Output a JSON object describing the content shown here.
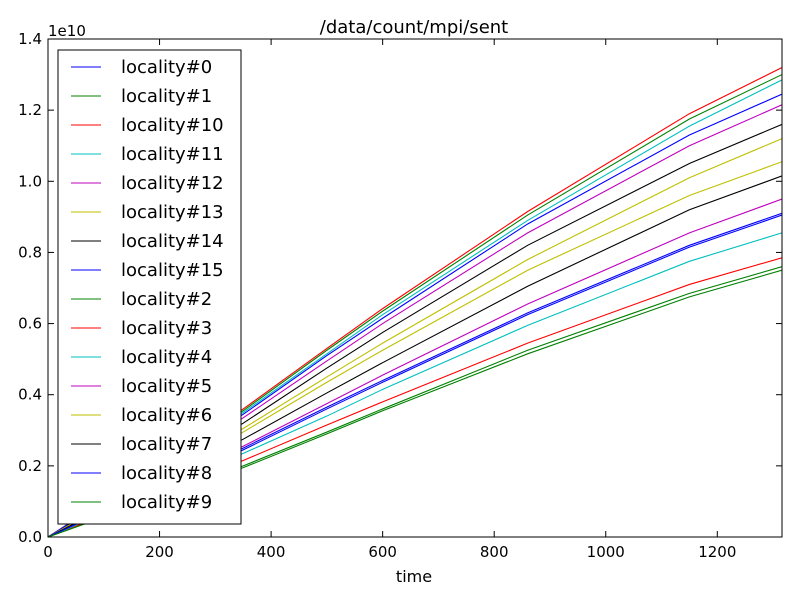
{
  "chart_data": {
    "type": "line",
    "title": "/data/count/mpi/sent",
    "xlabel": "time",
    "ylabel": "",
    "y_offset_label": "1e10",
    "xlim": [
      0,
      1316
    ],
    "ylim": [
      0,
      14000000000.0
    ],
    "x_ticks": [
      0,
      200,
      400,
      600,
      800,
      1000,
      1200
    ],
    "y_ticks": [
      0,
      2000000000.0,
      4000000000.0,
      6000000000.0,
      8000000000.0,
      10000000000.0,
      12000000000.0,
      14000000000.0
    ],
    "y_tick_labels": [
      "0.0",
      "0.2",
      "0.4",
      "0.6",
      "0.8",
      "1.0",
      "1.2",
      "1.4"
    ],
    "grid": false,
    "legend_position": "upper-left",
    "x": [
      0,
      350,
      500,
      600,
      860,
      1150,
      1316
    ],
    "series": [
      {
        "name": "locality#0",
        "color": "#0000ff",
        "values": [
          0,
          2450000000.0,
          3600000000.0,
          4350000000.0,
          6250000000.0,
          8150000000.0,
          9050000000.0
        ]
      },
      {
        "name": "locality#1",
        "color": "#008000",
        "values": [
          0,
          3550000000.0,
          5250000000.0,
          6350000000.0,
          9050000000.0,
          11750000000.0,
          13000000000.0
        ]
      },
      {
        "name": "locality#10",
        "color": "#ff0000",
        "values": [
          0,
          3600000000.0,
          5300000000.0,
          6420000000.0,
          9150000000.0,
          11900000000.0,
          13200000000.0
        ]
      },
      {
        "name": "locality#11",
        "color": "#00bfbf",
        "values": [
          0,
          3500000000.0,
          5150000000.0,
          6250000000.0,
          8900000000.0,
          11550000000.0,
          12850000000.0
        ]
      },
      {
        "name": "locality#12",
        "color": "#bf00bf",
        "values": [
          0,
          3350000000.0,
          4950000000.0,
          6000000000.0,
          8550000000.0,
          11000000000.0,
          12150000000.0
        ]
      },
      {
        "name": "locality#13",
        "color": "#bfbf00",
        "values": [
          0,
          2950000000.0,
          4350000000.0,
          5250000000.0,
          7500000000.0,
          9600000000.0,
          10550000000.0
        ]
      },
      {
        "name": "locality#14",
        "color": "#000000",
        "values": [
          0,
          3200000000.0,
          4750000000.0,
          5750000000.0,
          8200000000.0,
          10500000000.0,
          11600000000.0
        ]
      },
      {
        "name": "locality#15",
        "color": "#0000ff",
        "values": [
          0,
          3450000000.0,
          5100000000.0,
          6150000000.0,
          8800000000.0,
          11300000000.0,
          12450000000.0
        ]
      },
      {
        "name": "locality#2",
        "color": "#008000",
        "values": [
          0,
          2000000000.0,
          2950000000.0,
          3600000000.0,
          5250000000.0,
          6850000000.0,
          7600000000.0
        ]
      },
      {
        "name": "locality#3",
        "color": "#ff0000",
        "values": [
          0,
          2150000000.0,
          3150000000.0,
          3800000000.0,
          5450000000.0,
          7100000000.0,
          7850000000.0
        ]
      },
      {
        "name": "locality#4",
        "color": "#00bfbf",
        "values": [
          0,
          2350000000.0,
          3400000000.0,
          4150000000.0,
          5950000000.0,
          7750000000.0,
          8550000000.0
        ]
      },
      {
        "name": "locality#5",
        "color": "#bf00bf",
        "values": [
          0,
          2550000000.0,
          3750000000.0,
          4550000000.0,
          6550000000.0,
          8550000000.0,
          9500000000.0
        ]
      },
      {
        "name": "locality#6",
        "color": "#bfbf00",
        "values": [
          0,
          3050000000.0,
          4500000000.0,
          5450000000.0,
          7800000000.0,
          10100000000.0,
          11200000000.0
        ]
      },
      {
        "name": "locality#7",
        "color": "#000000",
        "values": [
          0,
          2750000000.0,
          4050000000.0,
          4900000000.0,
          7050000000.0,
          9200000000.0,
          10150000000.0
        ]
      },
      {
        "name": "locality#8",
        "color": "#0000ff",
        "values": [
          0,
          2500000000.0,
          3650000000.0,
          4400000000.0,
          6300000000.0,
          8200000000.0,
          9100000000.0
        ]
      },
      {
        "name": "locality#9",
        "color": "#008000",
        "values": [
          0,
          1950000000.0,
          2900000000.0,
          3550000000.0,
          5150000000.0,
          6750000000.0,
          7500000000.0
        ]
      }
    ]
  }
}
